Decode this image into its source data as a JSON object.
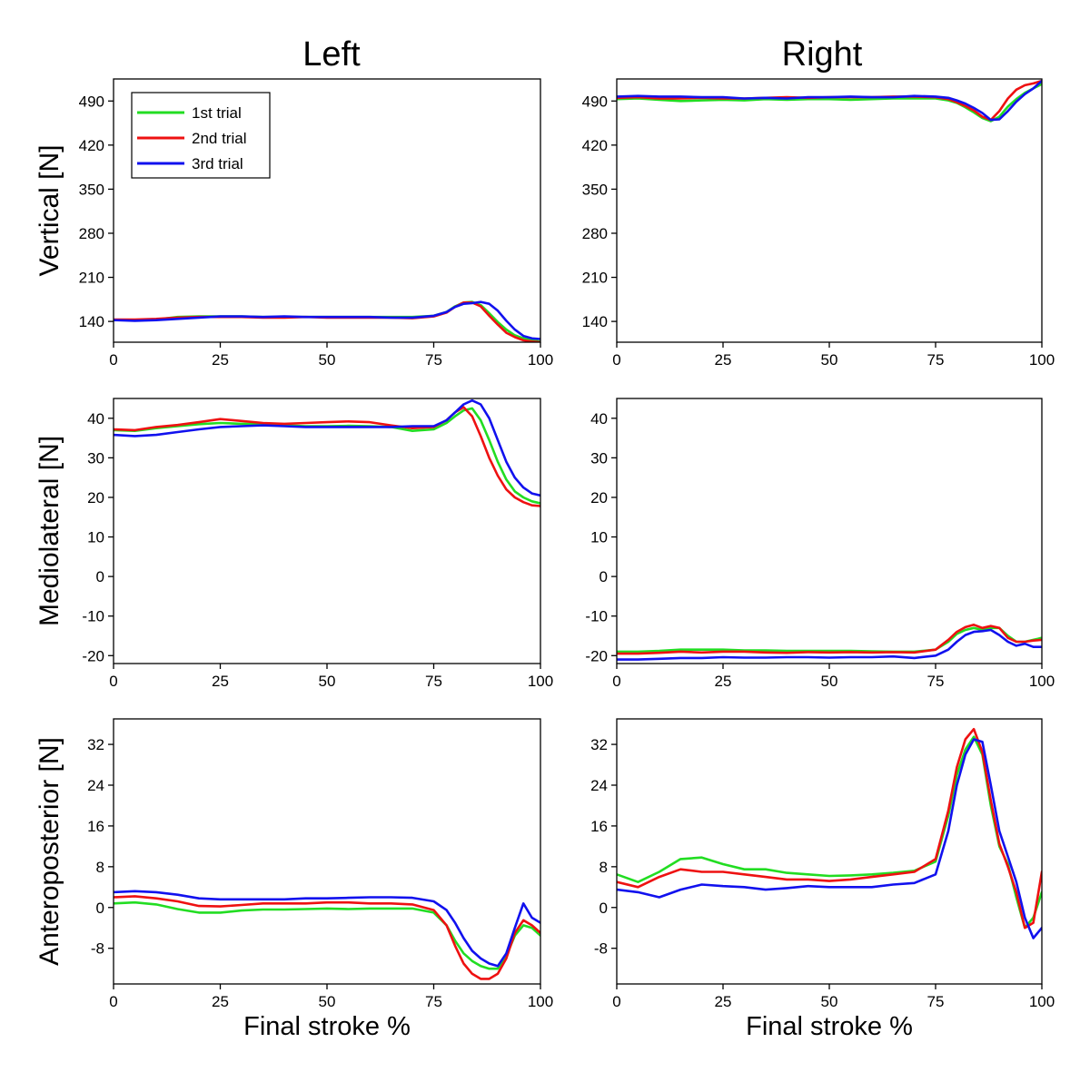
{
  "figure": {
    "column_titles": [
      "Left",
      "Right"
    ],
    "row_titles": [
      "Vertical [N]",
      "Mediolateral [N]",
      "Anteroposterior [N]"
    ],
    "x_axis_title": "Final stroke %"
  },
  "legend": {
    "entries": [
      {
        "label": "1st trial",
        "color": "#22dd22"
      },
      {
        "label": "2nd trial",
        "color": "#ee1111"
      },
      {
        "label": "3rd trial",
        "color": "#1111ee"
      }
    ]
  },
  "colors": {
    "trial1": "#22dd22",
    "trial2": "#ee1111",
    "trial3": "#1111ee",
    "axes": "#000000"
  },
  "chart_data": [
    {
      "type": "line",
      "title": "Left",
      "panel": "vertical-left",
      "xlabel": "",
      "ylabel": "Vertical [N]",
      "xlim": [
        0,
        100
      ],
      "ylim": [
        107,
        525
      ],
      "xticks": [
        0,
        25,
        50,
        75,
        100
      ],
      "yticks": [
        140,
        210,
        280,
        350,
        420,
        490
      ],
      "x": [
        0,
        5,
        10,
        15,
        20,
        25,
        30,
        35,
        40,
        45,
        50,
        55,
        60,
        65,
        70,
        75,
        78,
        80,
        82,
        84,
        86,
        88,
        90,
        92,
        94,
        96,
        98,
        100
      ],
      "series": [
        {
          "name": "1st trial",
          "values": [
            142,
            142,
            143,
            147,
            148,
            148,
            148,
            147,
            147,
            147,
            147,
            147,
            147,
            147,
            147,
            149,
            155,
            164,
            170,
            171,
            166,
            153,
            139,
            127,
            118,
            113,
            110,
            108
          ]
        },
        {
          "name": "2nd trial",
          "values": [
            143,
            143,
            144,
            146,
            147,
            147,
            147,
            146,
            146,
            147,
            146,
            146,
            146,
            146,
            145,
            148,
            154,
            163,
            170,
            170,
            164,
            149,
            135,
            122,
            115,
            110,
            108,
            107
          ]
        },
        {
          "name": "3rd trial",
          "values": [
            142,
            141,
            142,
            144,
            146,
            148,
            148,
            147,
            148,
            147,
            147,
            147,
            147,
            146,
            146,
            149,
            155,
            163,
            168,
            169,
            171,
            168,
            157,
            141,
            127,
            117,
            113,
            112
          ]
        }
      ]
    },
    {
      "type": "line",
      "title": "Right",
      "panel": "vertical-right",
      "xlabel": "",
      "ylabel": "",
      "xlim": [
        0,
        100
      ],
      "ylim": [
        107,
        525
      ],
      "xticks": [
        0,
        25,
        50,
        75,
        100
      ],
      "yticks": [
        140,
        210,
        280,
        350,
        420,
        490
      ],
      "x": [
        0,
        5,
        10,
        15,
        20,
        25,
        30,
        35,
        40,
        45,
        50,
        55,
        60,
        65,
        70,
        75,
        78,
        80,
        82,
        84,
        86,
        88,
        90,
        92,
        94,
        96,
        98,
        100
      ],
      "series": [
        {
          "name": "1st trial",
          "values": [
            493,
            494,
            492,
            490,
            491,
            492,
            491,
            493,
            492,
            493,
            493,
            492,
            493,
            494,
            494,
            494,
            491,
            487,
            480,
            472,
            463,
            458,
            465,
            481,
            493,
            503,
            510,
            517
          ]
        },
        {
          "name": "2nd trial",
          "values": [
            495,
            496,
            494,
            494,
            495,
            494,
            494,
            495,
            496,
            495,
            496,
            496,
            496,
            497,
            497,
            496,
            493,
            488,
            482,
            475,
            465,
            460,
            474,
            494,
            508,
            515,
            518,
            522
          ]
        },
        {
          "name": "3rd trial",
          "values": [
            497,
            498,
            497,
            497,
            496,
            496,
            494,
            495,
            494,
            496,
            496,
            497,
            496,
            496,
            498,
            497,
            495,
            491,
            486,
            479,
            471,
            460,
            461,
            474,
            489,
            501,
            510,
            522
          ]
        }
      ]
    },
    {
      "type": "line",
      "title": "",
      "panel": "mediolateral-left",
      "xlabel": "",
      "ylabel": "Mediolateral [N]",
      "xlim": [
        0,
        100
      ],
      "ylim": [
        -22,
        45
      ],
      "xticks": [
        0,
        25,
        50,
        75,
        100
      ],
      "yticks": [
        -20,
        -10,
        0,
        10,
        20,
        30,
        40
      ],
      "x": [
        0,
        5,
        10,
        15,
        20,
        25,
        30,
        35,
        40,
        45,
        50,
        55,
        60,
        65,
        70,
        75,
        78,
        80,
        82,
        84,
        86,
        88,
        90,
        92,
        94,
        96,
        98,
        100
      ],
      "series": [
        {
          "name": "1st trial",
          "values": [
            37.0,
            36.8,
            37.5,
            38.0,
            38.5,
            38.8,
            38.6,
            38.5,
            38.2,
            38.0,
            38.0,
            38.1,
            38.0,
            37.8,
            36.8,
            37.2,
            38.8,
            40.5,
            42.0,
            42.5,
            39.5,
            34.5,
            29.0,
            24.5,
            21.5,
            20.0,
            19.0,
            18.5
          ]
        },
        {
          "name": "2nd trial",
          "values": [
            37.2,
            37.0,
            37.8,
            38.3,
            39.0,
            39.8,
            39.3,
            38.8,
            38.6,
            38.8,
            39.0,
            39.2,
            39.0,
            38.2,
            37.5,
            37.8,
            39.5,
            41.5,
            42.8,
            40.5,
            35.5,
            30.0,
            25.5,
            22.0,
            20.0,
            18.8,
            18.0,
            17.8
          ]
        },
        {
          "name": "3rd trial",
          "values": [
            35.8,
            35.5,
            35.8,
            36.5,
            37.2,
            37.8,
            38.0,
            38.2,
            38.0,
            37.8,
            37.8,
            37.8,
            37.8,
            37.8,
            38.0,
            38.0,
            39.5,
            41.5,
            43.5,
            44.5,
            43.5,
            40.0,
            34.5,
            29.0,
            25.0,
            22.5,
            21.0,
            20.5
          ]
        }
      ]
    },
    {
      "type": "line",
      "title": "",
      "panel": "mediolateral-right",
      "xlabel": "",
      "ylabel": "",
      "xlim": [
        0,
        100
      ],
      "ylim": [
        -22,
        45
      ],
      "xticks": [
        0,
        25,
        50,
        75,
        100
      ],
      "yticks": [
        -20,
        -10,
        0,
        10,
        20,
        30,
        40
      ],
      "x": [
        0,
        5,
        10,
        15,
        20,
        25,
        30,
        35,
        40,
        45,
        50,
        55,
        60,
        65,
        70,
        75,
        78,
        80,
        82,
        84,
        86,
        88,
        90,
        92,
        94,
        96,
        98,
        100
      ],
      "series": [
        {
          "name": "1st trial",
          "values": [
            -19.0,
            -19.0,
            -18.8,
            -18.5,
            -18.5,
            -18.5,
            -18.7,
            -18.7,
            -18.8,
            -18.8,
            -18.8,
            -18.8,
            -18.9,
            -19.0,
            -19.0,
            -18.5,
            -16.5,
            -14.5,
            -13.5,
            -13.0,
            -13.5,
            -13.0,
            -13.0,
            -15.0,
            -16.5,
            -16.5,
            -16.0,
            -15.5
          ]
        },
        {
          "name": "2nd trial",
          "values": [
            -19.5,
            -19.5,
            -19.3,
            -19.0,
            -19.2,
            -19.0,
            -19.0,
            -19.2,
            -19.3,
            -19.1,
            -19.2,
            -19.1,
            -19.2,
            -19.1,
            -19.2,
            -18.5,
            -16.0,
            -14.0,
            -12.8,
            -12.2,
            -13.0,
            -12.5,
            -13.0,
            -15.5,
            -16.5,
            -16.5,
            -16.2,
            -16.0
          ]
        },
        {
          "name": "3rd trial",
          "values": [
            -21.0,
            -21.0,
            -20.8,
            -20.6,
            -20.6,
            -20.4,
            -20.5,
            -20.5,
            -20.4,
            -20.4,
            -20.5,
            -20.4,
            -20.4,
            -20.2,
            -20.6,
            -20.0,
            -18.5,
            -16.5,
            -14.8,
            -14.0,
            -13.8,
            -13.5,
            -14.8,
            -16.5,
            -17.5,
            -17.0,
            -17.8,
            -17.8
          ]
        }
      ]
    },
    {
      "type": "line",
      "title": "",
      "panel": "anteroposterior-left",
      "xlabel": "Final stroke %",
      "ylabel": "Anteroposterior [N]",
      "xlim": [
        0,
        100
      ],
      "ylim": [
        -15,
        37
      ],
      "xticks": [
        0,
        25,
        50,
        75,
        100
      ],
      "yticks": [
        -8,
        0,
        8,
        16,
        24,
        32
      ],
      "x": [
        0,
        5,
        10,
        15,
        20,
        25,
        30,
        35,
        40,
        45,
        50,
        55,
        60,
        65,
        70,
        75,
        78,
        80,
        82,
        84,
        86,
        88,
        90,
        92,
        94,
        96,
        98,
        100
      ],
      "series": [
        {
          "name": "1st trial",
          "values": [
            0.8,
            1.0,
            0.6,
            -0.3,
            -1.0,
            -1.0,
            -0.6,
            -0.4,
            -0.4,
            -0.3,
            -0.2,
            -0.3,
            -0.2,
            -0.2,
            -0.2,
            -1.0,
            -3.5,
            -6.5,
            -9.0,
            -10.5,
            -11.5,
            -12.0,
            -12.0,
            -9.5,
            -5.5,
            -3.5,
            -4.0,
            -5.5
          ]
        },
        {
          "name": "2nd trial",
          "values": [
            2.0,
            2.2,
            1.8,
            1.2,
            0.3,
            0.2,
            0.5,
            0.8,
            0.8,
            0.8,
            1.0,
            1.0,
            0.8,
            0.8,
            0.6,
            -0.5,
            -3.5,
            -7.5,
            -11.0,
            -13.0,
            -14.0,
            -14.0,
            -13.0,
            -10.0,
            -5.0,
            -2.5,
            -3.5,
            -5.0
          ]
        },
        {
          "name": "3rd trial",
          "values": [
            3.0,
            3.2,
            3.0,
            2.5,
            1.8,
            1.6,
            1.6,
            1.6,
            1.6,
            1.8,
            1.8,
            1.9,
            2.0,
            2.0,
            1.9,
            1.2,
            -0.5,
            -3.0,
            -6.0,
            -8.5,
            -10.0,
            -11.0,
            -11.5,
            -9.0,
            -4.0,
            0.8,
            -2.0,
            -3.0
          ]
        }
      ]
    },
    {
      "type": "line",
      "title": "",
      "panel": "anteroposterior-right",
      "xlabel": "Final stroke %",
      "ylabel": "",
      "xlim": [
        0,
        100
      ],
      "ylim": [
        -15,
        37
      ],
      "xticks": [
        0,
        25,
        50,
        75,
        100
      ],
      "yticks": [
        -8,
        0,
        8,
        16,
        24,
        32
      ],
      "x": [
        0,
        5,
        10,
        15,
        20,
        25,
        30,
        35,
        40,
        45,
        50,
        55,
        60,
        65,
        70,
        75,
        78,
        80,
        82,
        84,
        86,
        88,
        90,
        92,
        94,
        96,
        98,
        100
      ],
      "series": [
        {
          "name": "1st trial",
          "values": [
            6.5,
            5.0,
            7.0,
            9.5,
            9.8,
            8.5,
            7.5,
            7.5,
            6.8,
            6.5,
            6.2,
            6.3,
            6.5,
            6.8,
            7.2,
            9.0,
            18.0,
            26.0,
            31.0,
            33.5,
            30.0,
            20.0,
            12.0,
            8.5,
            2.0,
            -4.0,
            -2.0,
            3.0
          ]
        },
        {
          "name": "2nd trial",
          "values": [
            5.0,
            4.0,
            6.0,
            7.5,
            7.0,
            7.0,
            6.5,
            6.0,
            5.5,
            5.5,
            5.2,
            5.5,
            6.0,
            6.5,
            7.0,
            9.5,
            19.0,
            27.5,
            33.0,
            35.0,
            30.5,
            21.0,
            12.5,
            8.0,
            3.0,
            -4.0,
            -3.0,
            7.0
          ]
        },
        {
          "name": "3rd trial",
          "values": [
            3.5,
            3.0,
            2.0,
            3.5,
            4.5,
            4.2,
            4.0,
            3.5,
            3.8,
            4.2,
            4.0,
            4.0,
            4.0,
            4.5,
            4.8,
            6.5,
            15.0,
            24.0,
            30.0,
            33.0,
            32.5,
            24.0,
            15.0,
            10.0,
            5.0,
            -2.0,
            -6.0,
            -4.0
          ]
        }
      ]
    }
  ]
}
